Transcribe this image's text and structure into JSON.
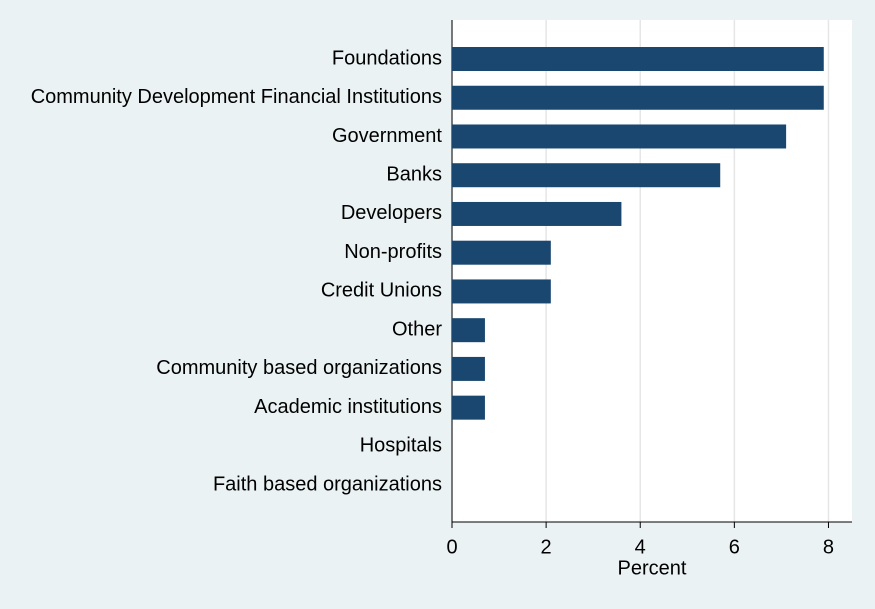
{
  "chart_data": {
    "type": "bar",
    "orientation": "horizontal",
    "x_label": "Percent",
    "categories": [
      "Foundations",
      "Community Development Financial Institutions",
      "Government",
      "Banks",
      "Developers",
      "Non-profits",
      "Credit Unions",
      "Other",
      "Community based organizations",
      "Academic institutions",
      "Hospitals",
      "Faith based organizations"
    ],
    "values": [
      7.9,
      7.9,
      7.1,
      5.7,
      3.6,
      2.1,
      2.1,
      0.7,
      0.7,
      0.7,
      0,
      0
    ],
    "color": "#1a476f",
    "xlim": [
      0,
      8.5
    ],
    "xticks": [
      0,
      2,
      4,
      6,
      8
    ],
    "grid": true
  }
}
